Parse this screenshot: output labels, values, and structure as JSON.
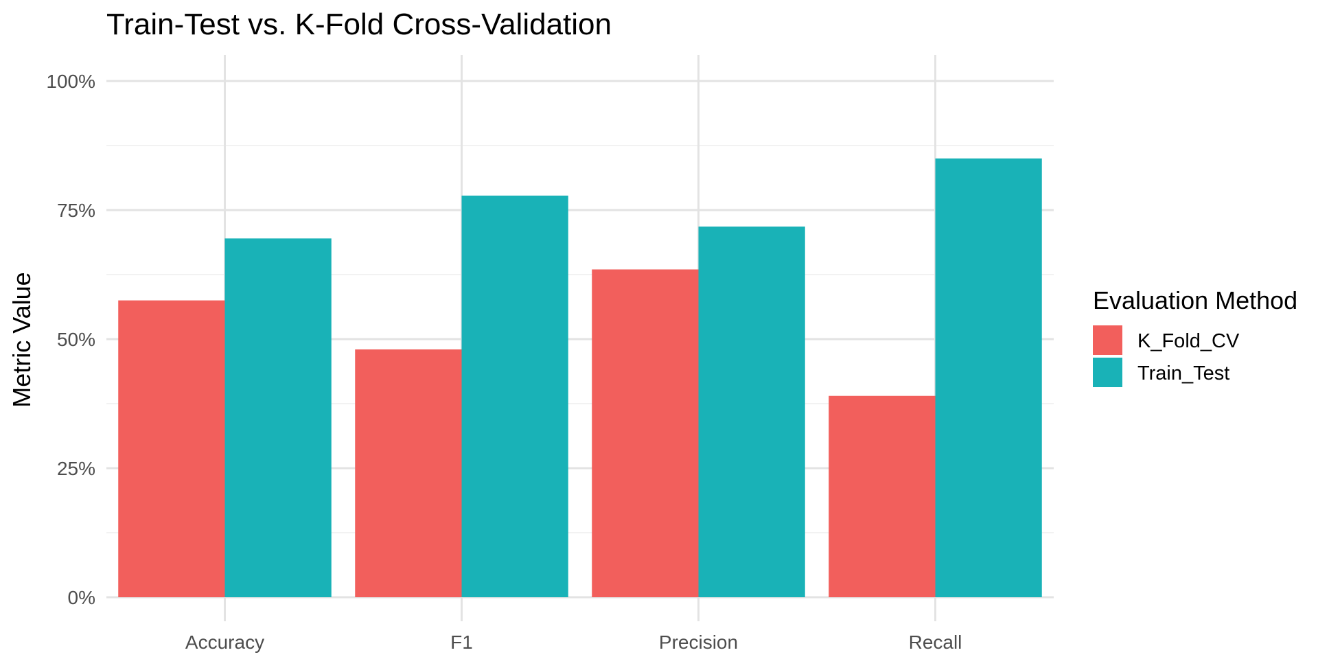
{
  "chart_data": {
    "type": "bar",
    "title": "Train-Test vs. K-Fold Cross-Validation",
    "xlabel": "",
    "ylabel": "Metric Value",
    "categories": [
      "Accuracy",
      "F1",
      "Precision",
      "Recall"
    ],
    "series": [
      {
        "name": "K_Fold_CV",
        "values": [
          0.575,
          0.48,
          0.635,
          0.39
        ],
        "color": "#F25F5C"
      },
      {
        "name": "Train_Test",
        "values": [
          0.695,
          0.778,
          0.718,
          0.85
        ],
        "color": "#19B2B7"
      }
    ],
    "ylim": [
      0,
      1
    ],
    "yticks": [
      0,
      0.25,
      0.5,
      0.75,
      1.0
    ],
    "ytick_labels": [
      "0%",
      "25%",
      "50%",
      "75%",
      "100%"
    ],
    "grid": true,
    "legend": {
      "title": "Evaluation Method",
      "position": "right"
    }
  }
}
